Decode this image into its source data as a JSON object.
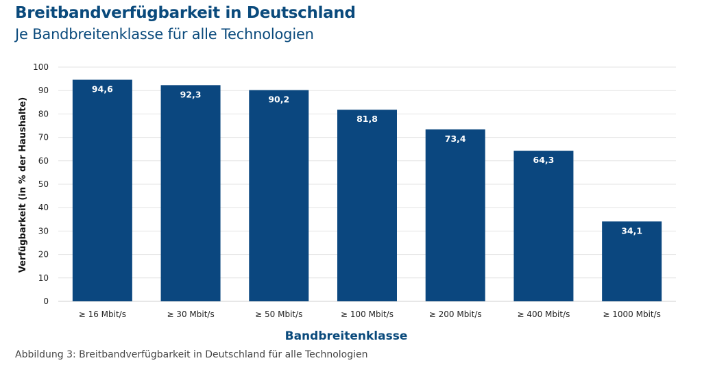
{
  "header": {
    "title": "Breitbandverfügbarkeit in Deutschland",
    "subtitle": "Je Bandbreitenklasse für alle Technologien"
  },
  "caption": "Abbildung 3: Breitbandverfügbarkeit in Deutschland für alle Technologien",
  "colors": {
    "bar": "#0b477f",
    "title": "#0a4a7c",
    "grid": "#e3e3e3"
  },
  "chart_data": {
    "type": "bar",
    "title": "Breitbandverfügbarkeit in Deutschland",
    "subtitle": "Je Bandbreitenklasse für alle Technologien",
    "xlabel": "Bandbreitenklasse",
    "ylabel": "Verfügbarkeit (in % der Haushalte)",
    "categories": [
      "≥ 16 Mbit/s",
      "≥ 30 Mbit/s",
      "≥ 50 Mbit/s",
      "≥ 100 Mbit/s",
      "≥ 200 Mbit/s",
      "≥ 400 Mbit/s",
      "≥ 1000 Mbit/s"
    ],
    "values": [
      94.6,
      92.3,
      90.2,
      81.8,
      73.4,
      64.3,
      34.1
    ],
    "value_labels": [
      "94,6",
      "92,3",
      "90,2",
      "81,8",
      "73,4",
      "64,3",
      "34,1"
    ],
    "ylim": [
      0,
      100
    ],
    "yticks": [
      0,
      10,
      20,
      30,
      40,
      50,
      60,
      70,
      80,
      90,
      100
    ],
    "grid": true
  }
}
